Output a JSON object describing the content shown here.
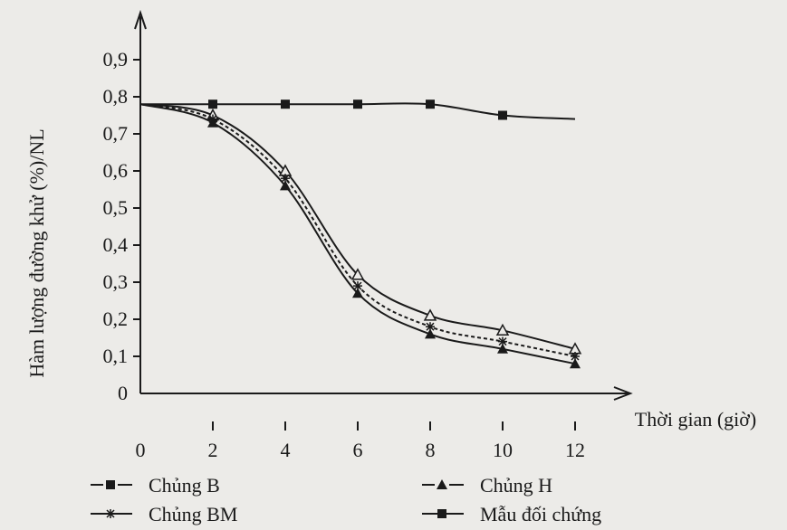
{
  "chart_data": {
    "type": "line",
    "title": "",
    "xlabel": "Thời gian (giờ)",
    "ylabel": "Hàm lượng đường khử (%)/NL",
    "xlim": [
      0,
      12
    ],
    "ylim": [
      0,
      0.9
    ],
    "x_ticks": [
      "0",
      "2",
      "4",
      "6",
      "8",
      "10",
      "12"
    ],
    "y_ticks": [
      "0",
      "0,1",
      "0,2",
      "0,3",
      "0,4",
      "0,5",
      "0,6",
      "0,7",
      "0,8",
      "0,9"
    ],
    "grid": false,
    "legend_position": "bottom",
    "x": [
      0,
      2,
      4,
      6,
      8,
      10,
      12
    ],
    "series": [
      {
        "name": "Chủng B",
        "marker": "square",
        "values": [
          0.78,
          0.75,
          0.6,
          0.32,
          0.21,
          0.17,
          0.12
        ]
      },
      {
        "name": "Chủng H",
        "marker": "triangle",
        "values": [
          0.78,
          0.73,
          0.56,
          0.27,
          0.16,
          0.12,
          0.08
        ]
      },
      {
        "name": "Chủng BM",
        "marker": "star",
        "values": [
          0.78,
          0.74,
          0.58,
          0.29,
          0.18,
          0.14,
          0.1
        ]
      },
      {
        "name": "Mẫu đối chứng",
        "marker": "square",
        "values": [
          0.78,
          0.78,
          0.78,
          0.78,
          0.78,
          0.75,
          0.74
        ]
      }
    ],
    "colors": {
      "ink": "#1a1a1a",
      "paper": "#ecebe8"
    }
  }
}
